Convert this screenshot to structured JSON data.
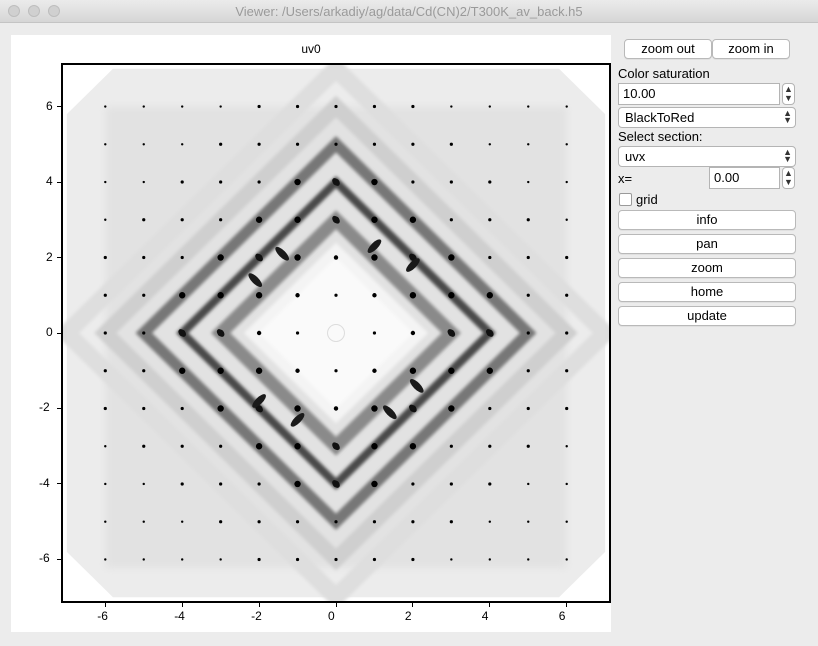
{
  "window": {
    "title": "Viewer: /Users/arkadiy/ag/data/Cd(CN)2/T300K_av_back.h5"
  },
  "plot": {
    "title": "uv0",
    "colormap": "grayscale (white background, black peaks)",
    "x_ticks": [
      "-6",
      "-4",
      "-2",
      "0",
      "2",
      "4",
      "6"
    ],
    "y_ticks": [
      "6",
      "4",
      "2",
      "0",
      "-2",
      "-4",
      "-6"
    ],
    "xlim": [
      -7.1,
      7.1
    ],
    "ylim": [
      -7.1,
      7.1
    ]
  },
  "panel": {
    "zoom_out": "zoom out",
    "zoom_in": "zoom in",
    "color_saturation_label": "Color saturation",
    "color_saturation_value": "10.00",
    "colormap_selected": "BlackToRed",
    "select_section_label": "Select section:",
    "section_selected": "uvx",
    "x_label": "x=",
    "x_value": "0.00",
    "grid_label": "grid",
    "grid_checked": false,
    "buttons": [
      "info",
      "pan",
      "zoom",
      "home",
      "update"
    ]
  }
}
